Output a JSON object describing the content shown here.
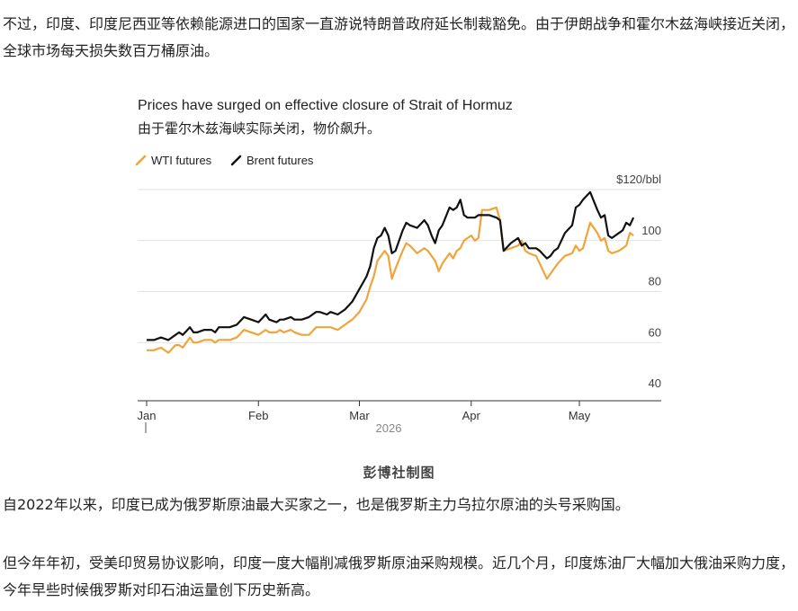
{
  "article": {
    "para1": "不过，印度、印度尼西亚等依赖能源进口的国家一直游说特朗普政府延长制裁豁免。由于伊朗战争和霍尔木兹海峡接近关闭，全球市场每天损失数百万桶原油。",
    "caption": "彭博社制图",
    "para2": "自2022年以来，印度已成为俄罗斯原油最大买家之一，也是俄罗斯主力乌拉尔原油的头号采购国。",
    "para3": "但今年年初，受美印贸易协议影响，印度一度大幅削减俄罗斯原油采购规模。近几个月，印度炼油厂大幅加大俄油采购力度，今年早些时候俄罗斯对印石油运量创下历史新高。"
  },
  "chart_data": {
    "type": "line",
    "title": "Prices have surged on effective closure of Strait of Hormuz",
    "subtitle": "由于霍尔木兹海峡实际关闭，物价飙升。",
    "x_labels": [
      "Jan",
      "Feb",
      "Mar",
      "Apr",
      "May"
    ],
    "x_label_day": [
      0,
      31,
      59,
      90,
      120
    ],
    "year_label": "2026",
    "y_ticks": [
      "$120/bbl",
      "100",
      "80",
      "60",
      "40"
    ],
    "y_tick_values": [
      120,
      100,
      80,
      60,
      40
    ],
    "ylim": [
      40,
      120
    ],
    "grid": true,
    "legend_position": "top-left",
    "x_unit": "days since Jan 1, 2026",
    "series": [
      {
        "name": "WTI futures",
        "color": "#f0a43a",
        "x": [
          0,
          2,
          4,
          6,
          8,
          9,
          10,
          12,
          13,
          14,
          16,
          18,
          19,
          20,
          23,
          25,
          27,
          29,
          31,
          33,
          34,
          36,
          37,
          38,
          40,
          41,
          43,
          45,
          47,
          48,
          50,
          51,
          53,
          55,
          57,
          59,
          61,
          62,
          63,
          64,
          65,
          66,
          67,
          68,
          69,
          71,
          72,
          73,
          75,
          77,
          78,
          79,
          80,
          81,
          82,
          84,
          85,
          86,
          87,
          88,
          89,
          90,
          91,
          92,
          93,
          95,
          97,
          98,
          99,
          101,
          103,
          104,
          105,
          106,
          108,
          109,
          111,
          112,
          113,
          114,
          116,
          118,
          119,
          120,
          121,
          123,
          125,
          126,
          127,
          128,
          129,
          131,
          132,
          133,
          134,
          135
        ],
        "values": [
          57,
          57,
          58,
          56,
          59,
          59,
          58,
          62,
          60,
          60,
          61,
          61,
          60,
          61,
          61,
          62,
          65,
          64,
          63,
          65,
          64,
          64,
          65,
          64,
          65,
          64,
          63,
          63,
          66,
          66,
          66,
          66,
          65,
          67,
          69,
          72,
          77,
          82,
          86,
          92,
          94,
          96,
          94,
          85,
          89,
          96,
          99,
          98,
          95,
          97,
          96,
          94,
          92,
          88,
          91,
          95,
          93,
          96,
          97,
          100,
          101,
          102,
          100,
          101,
          112,
          112,
          113,
          108,
          96,
          97,
          98,
          100,
          96,
          95,
          94,
          91,
          85,
          87,
          89,
          91,
          94,
          95,
          98,
          96,
          97,
          107,
          103,
          100,
          101,
          96,
          95,
          96,
          97,
          98,
          103,
          102
        ]
      },
      {
        "name": "Brent futures",
        "color": "#111111",
        "x": [
          0,
          2,
          4,
          6,
          8,
          9,
          10,
          12,
          13,
          14,
          16,
          18,
          19,
          20,
          23,
          25,
          27,
          29,
          31,
          33,
          34,
          36,
          37,
          38,
          40,
          41,
          43,
          45,
          47,
          48,
          50,
          51,
          53,
          55,
          57,
          59,
          61,
          62,
          63,
          64,
          65,
          66,
          67,
          68,
          69,
          71,
          72,
          73,
          75,
          77,
          78,
          79,
          80,
          81,
          82,
          84,
          85,
          86,
          87,
          88,
          89,
          90,
          91,
          92,
          93,
          95,
          97,
          98,
          99,
          101,
          103,
          104,
          105,
          106,
          108,
          109,
          111,
          112,
          113,
          114,
          116,
          118,
          119,
          120,
          121,
          123,
          125,
          126,
          127,
          128,
          129,
          131,
          132,
          133,
          134,
          135
        ],
        "values": [
          61,
          61,
          62,
          61,
          63,
          64,
          63,
          66,
          64,
          64,
          65,
          65,
          64,
          66,
          66,
          67,
          70,
          69,
          68,
          71,
          69,
          68,
          69,
          69,
          70,
          69,
          69,
          70,
          72,
          72,
          71,
          72,
          71,
          73,
          76,
          81,
          86,
          90,
          97,
          101,
          102,
          105,
          102,
          95,
          96,
          104,
          107,
          106,
          105,
          108,
          106,
          102,
          99,
          104,
          106,
          113,
          112,
          113,
          116,
          110,
          109,
          109,
          109,
          110,
          110,
          110,
          109,
          108,
          96,
          99,
          101,
          98,
          99,
          97,
          97,
          96,
          93,
          94,
          96,
          97,
          103,
          106,
          113,
          114,
          116,
          119,
          112,
          109,
          110,
          102,
          101,
          103,
          104,
          107,
          106,
          109
        ]
      }
    ]
  }
}
